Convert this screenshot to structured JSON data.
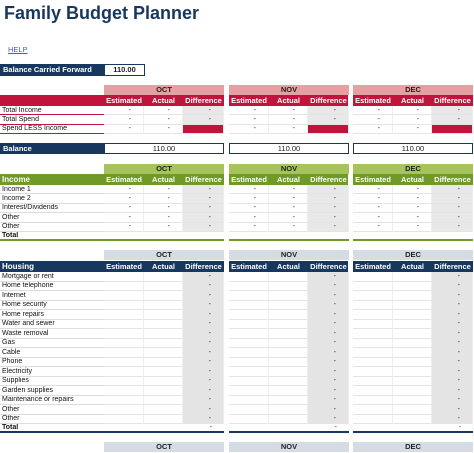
{
  "header": {
    "title": "Family Budget Planner",
    "help": "HELP"
  },
  "balance_carried_forward": {
    "label": "Balance Carried Forward",
    "value": "110.00"
  },
  "months": [
    "OCT",
    "NOV",
    "DEC"
  ],
  "columns": [
    "Estimated",
    "Actual",
    "Difference"
  ],
  "summary": {
    "rows": [
      {
        "label": "Total Income",
        "values": [
          [
            "-",
            "-",
            "-"
          ],
          [
            "-",
            "-",
            "-"
          ],
          [
            "-",
            "-",
            "-"
          ]
        ]
      },
      {
        "label": "Total Spend",
        "values": [
          [
            "-",
            "-",
            "-"
          ],
          [
            "-",
            "-",
            "-"
          ],
          [
            "-",
            "-",
            "-"
          ]
        ]
      },
      {
        "label": "Spend LESS Income",
        "values": [
          [
            "-",
            "-",
            null
          ],
          [
            "-",
            "-",
            null
          ],
          [
            "-",
            "-",
            null
          ]
        ]
      }
    ]
  },
  "balance": {
    "label": "Balance",
    "values": [
      "110.00",
      "110.00",
      "110.00"
    ]
  },
  "income": {
    "title": "Income",
    "rows": [
      {
        "label": "Income 1",
        "values": [
          [
            "-",
            "-",
            "-"
          ],
          [
            "-",
            "-",
            "-"
          ],
          [
            "-",
            "-",
            "-"
          ]
        ]
      },
      {
        "label": "Income 2",
        "values": [
          [
            "-",
            "-",
            "-"
          ],
          [
            "-",
            "-",
            "-"
          ],
          [
            "-",
            "-",
            "-"
          ]
        ]
      },
      {
        "label": "Interest/Dividends",
        "values": [
          [
            "-",
            "-",
            "-"
          ],
          [
            "-",
            "-",
            "-"
          ],
          [
            "-",
            "-",
            "-"
          ]
        ]
      },
      {
        "label": "Other",
        "values": [
          [
            "-",
            "-",
            "-"
          ],
          [
            "-",
            "-",
            "-"
          ],
          [
            "-",
            "-",
            "-"
          ]
        ]
      },
      {
        "label": "Other",
        "values": [
          [
            "-",
            "-",
            "-"
          ],
          [
            "-",
            "-",
            "-"
          ],
          [
            "-",
            "-",
            "-"
          ]
        ]
      }
    ],
    "total": {
      "label": "Total"
    }
  },
  "housing": {
    "title": "Housing",
    "rows": [
      {
        "label": "Mortgage or rent",
        "values": [
          [
            null,
            null,
            "-"
          ],
          [
            null,
            null,
            "-"
          ],
          [
            null,
            null,
            "-"
          ]
        ]
      },
      {
        "label": "Home telephone",
        "values": [
          [
            null,
            null,
            "-"
          ],
          [
            null,
            null,
            "-"
          ],
          [
            null,
            null,
            "-"
          ]
        ]
      },
      {
        "label": "Internet",
        "values": [
          [
            null,
            null,
            "-"
          ],
          [
            null,
            null,
            "-"
          ],
          [
            null,
            null,
            "-"
          ]
        ]
      },
      {
        "label": "Home security",
        "values": [
          [
            null,
            null,
            "-"
          ],
          [
            null,
            null,
            "-"
          ],
          [
            null,
            null,
            "-"
          ]
        ]
      },
      {
        "label": "Home repairs",
        "values": [
          [
            null,
            null,
            "-"
          ],
          [
            null,
            null,
            "-"
          ],
          [
            null,
            null,
            "-"
          ]
        ]
      },
      {
        "label": "Water and sewer",
        "values": [
          [
            null,
            null,
            "-"
          ],
          [
            null,
            null,
            "-"
          ],
          [
            null,
            null,
            "-"
          ]
        ]
      },
      {
        "label": "Waste removal",
        "values": [
          [
            null,
            null,
            "-"
          ],
          [
            null,
            null,
            "-"
          ],
          [
            null,
            null,
            "-"
          ]
        ]
      },
      {
        "label": "Gas",
        "values": [
          [
            null,
            null,
            "-"
          ],
          [
            null,
            null,
            "-"
          ],
          [
            null,
            null,
            "-"
          ]
        ]
      },
      {
        "label": "Cable",
        "values": [
          [
            null,
            null,
            "-"
          ],
          [
            null,
            null,
            "-"
          ],
          [
            null,
            null,
            "-"
          ]
        ]
      },
      {
        "label": "Phone",
        "values": [
          [
            null,
            null,
            "-"
          ],
          [
            null,
            null,
            "-"
          ],
          [
            null,
            null,
            "-"
          ]
        ]
      },
      {
        "label": "Electricity",
        "values": [
          [
            null,
            null,
            "-"
          ],
          [
            null,
            null,
            "-"
          ],
          [
            null,
            null,
            "-"
          ]
        ]
      },
      {
        "label": "Supplies",
        "values": [
          [
            null,
            null,
            "-"
          ],
          [
            null,
            null,
            "-"
          ],
          [
            null,
            null,
            "-"
          ]
        ]
      },
      {
        "label": "Garden supplies",
        "values": [
          [
            null,
            null,
            "-"
          ],
          [
            null,
            null,
            "-"
          ],
          [
            null,
            null,
            "-"
          ]
        ]
      },
      {
        "label": "Maintenance or repairs",
        "values": [
          [
            null,
            null,
            "-"
          ],
          [
            null,
            null,
            "-"
          ],
          [
            null,
            null,
            "-"
          ]
        ]
      },
      {
        "label": "Other",
        "values": [
          [
            null,
            null,
            "-"
          ],
          [
            null,
            null,
            "-"
          ],
          [
            null,
            null,
            "-"
          ]
        ]
      },
      {
        "label": "Other",
        "values": [
          [
            null,
            null,
            "-"
          ],
          [
            null,
            null,
            "-"
          ],
          [
            null,
            null,
            "-"
          ]
        ]
      }
    ],
    "total": {
      "label": "Total",
      "values": [
        [
          null,
          null,
          "-"
        ],
        [
          null,
          null,
          "-"
        ],
        [
          null,
          null,
          "-"
        ]
      ]
    }
  }
}
